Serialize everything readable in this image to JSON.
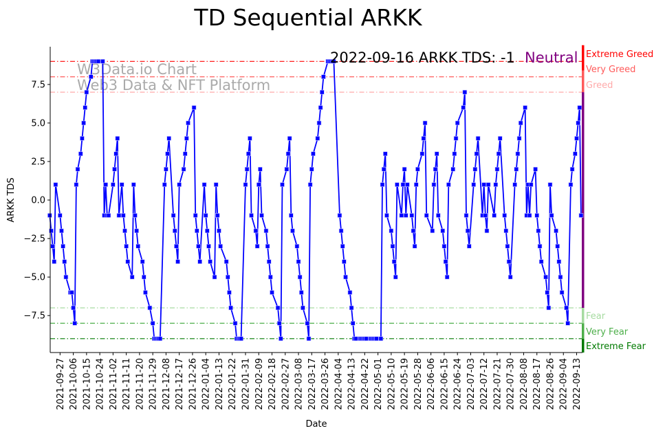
{
  "chart_data": {
    "type": "line",
    "title": "TD Sequential ARKK",
    "xlabel": "Date",
    "ylabel": "ARKK TDS",
    "x_unit": "days since 2021-09-27",
    "x_origin": "2021-09-27",
    "xlim": [
      -6.7,
      354.5
    ],
    "ylim": [
      -9.9,
      9.95
    ],
    "yticks": [
      7.5,
      5.0,
      2.5,
      0.0,
      -2.5,
      -5.0,
      -7.5
    ],
    "ytick_labels": [
      "7.5",
      "5.0",
      "2.5",
      "0.0",
      "−2.5",
      "−5.0",
      "−7.5"
    ],
    "xticks": [
      0,
      9,
      18,
      27,
      36,
      45,
      54,
      63,
      72,
      81,
      90,
      99,
      108,
      117,
      126,
      135,
      144,
      153,
      162,
      171,
      180,
      189,
      198,
      207,
      216,
      225,
      234,
      243,
      252,
      261,
      270,
      279,
      288,
      297,
      306,
      315,
      324,
      333,
      342,
      351
    ],
    "xtick_labels": [
      "2021-09-27",
      "2021-10-06",
      "2021-10-15",
      "2021-10-24",
      "2021-11-02",
      "2021-11-11",
      "2021-11-20",
      "2021-11-29",
      "2021-12-08",
      "2021-12-17",
      "2021-12-26",
      "2022-01-04",
      "2022-01-13",
      "2022-01-22",
      "2022-01-31",
      "2022-02-09",
      "2022-02-18",
      "2022-02-27",
      "2022-03-08",
      "2022-03-17",
      "2022-03-26",
      "2022-04-04",
      "2022-04-13",
      "2022-04-22",
      "2022-05-01",
      "2022-05-10",
      "2022-05-19",
      "2022-05-28",
      "2022-06-06",
      "2022-06-15",
      "2022-06-24",
      "2022-07-03",
      "2022-07-12",
      "2022-07-21",
      "2022-07-30",
      "2022-08-08",
      "2022-08-17",
      "2022-08-26",
      "2022-09-04",
      "2022-09-13"
    ],
    "series": [
      {
        "name": "ARKK TDS",
        "color": "#0000ff",
        "points": [
          [
            -7,
            -1
          ],
          [
            -6,
            -2
          ],
          [
            -5,
            -3
          ],
          [
            -4,
            -4
          ],
          [
            -3,
            1
          ],
          [
            0,
            -1
          ],
          [
            1,
            -2
          ],
          [
            2,
            -3
          ],
          [
            3,
            -4
          ],
          [
            4,
            -5
          ],
          [
            7,
            -6
          ],
          [
            8,
            -6
          ],
          [
            9,
            -7
          ],
          [
            10,
            -8
          ],
          [
            11,
            1
          ],
          [
            12,
            2
          ],
          [
            14,
            3
          ],
          [
            15,
            4
          ],
          [
            16,
            5
          ],
          [
            17,
            6
          ],
          [
            18,
            7
          ],
          [
            21,
            8
          ],
          [
            22,
            9
          ],
          [
            23,
            9
          ],
          [
            24,
            9
          ],
          [
            25,
            9
          ],
          [
            26,
            9
          ],
          [
            29,
            9
          ],
          [
            30,
            -1
          ],
          [
            31,
            1
          ],
          [
            32,
            -1
          ],
          [
            33,
            -1
          ],
          [
            36,
            1
          ],
          [
            37,
            2
          ],
          [
            38,
            3
          ],
          [
            39,
            4
          ],
          [
            40,
            -1
          ],
          [
            42,
            1
          ],
          [
            43,
            -1
          ],
          [
            44,
            -2
          ],
          [
            45,
            -3
          ],
          [
            46,
            -4
          ],
          [
            49,
            -5
          ],
          [
            50,
            1
          ],
          [
            51,
            -1
          ],
          [
            52,
            -2
          ],
          [
            53,
            -3
          ],
          [
            56,
            -4
          ],
          [
            57,
            -5
          ],
          [
            58,
            -6
          ],
          [
            61,
            -7
          ],
          [
            63,
            -8
          ],
          [
            64,
            -9
          ],
          [
            65,
            -9
          ],
          [
            66,
            -9
          ],
          [
            67,
            -9
          ],
          [
            68,
            -9
          ],
          [
            71,
            1
          ],
          [
            72,
            2
          ],
          [
            73,
            3
          ],
          [
            74,
            4
          ],
          [
            77,
            -1
          ],
          [
            78,
            -2
          ],
          [
            79,
            -3
          ],
          [
            80,
            -4
          ],
          [
            81,
            1
          ],
          [
            84,
            2
          ],
          [
            85,
            3
          ],
          [
            86,
            4
          ],
          [
            87,
            5
          ],
          [
            91,
            6
          ],
          [
            92,
            -1
          ],
          [
            93,
            -2
          ],
          [
            94,
            -3
          ],
          [
            95,
            -4
          ],
          [
            98,
            1
          ],
          [
            99,
            -1
          ],
          [
            100,
            -2
          ],
          [
            101,
            -3
          ],
          [
            102,
            -4
          ],
          [
            105,
            -5
          ],
          [
            106,
            1
          ],
          [
            107,
            -1
          ],
          [
            108,
            -2
          ],
          [
            109,
            -3
          ],
          [
            113,
            -4
          ],
          [
            114,
            -5
          ],
          [
            115,
            -6
          ],
          [
            116,
            -7
          ],
          [
            119,
            -8
          ],
          [
            120,
            -9
          ],
          [
            121,
            -9
          ],
          [
            122,
            -9
          ],
          [
            123,
            -9
          ],
          [
            126,
            1
          ],
          [
            127,
            2
          ],
          [
            128,
            3
          ],
          [
            129,
            4
          ],
          [
            130,
            -1
          ],
          [
            133,
            -2
          ],
          [
            134,
            -3
          ],
          [
            135,
            1
          ],
          [
            136,
            2
          ],
          [
            137,
            -1
          ],
          [
            140,
            -2
          ],
          [
            141,
            -3
          ],
          [
            142,
            -4
          ],
          [
            143,
            -5
          ],
          [
            144,
            -6
          ],
          [
            148,
            -7
          ],
          [
            149,
            -8
          ],
          [
            150,
            -9
          ],
          [
            151,
            1
          ],
          [
            154,
            2
          ],
          [
            155,
            3
          ],
          [
            156,
            4
          ],
          [
            157,
            -1
          ],
          [
            158,
            -2
          ],
          [
            161,
            -3
          ],
          [
            162,
            -4
          ],
          [
            163,
            -5
          ],
          [
            164,
            -6
          ],
          [
            165,
            -7
          ],
          [
            168,
            -8
          ],
          [
            169,
            -9
          ],
          [
            170,
            1
          ],
          [
            171,
            2
          ],
          [
            172,
            3
          ],
          [
            175,
            4
          ],
          [
            176,
            5
          ],
          [
            177,
            6
          ],
          [
            178,
            7
          ],
          [
            179,
            8
          ],
          [
            182,
            9
          ],
          [
            183,
            9
          ],
          [
            184,
            9
          ],
          [
            185,
            9
          ],
          [
            186,
            9
          ],
          [
            190,
            -1
          ],
          [
            191,
            -2
          ],
          [
            192,
            -3
          ],
          [
            193,
            -4
          ],
          [
            194,
            -5
          ],
          [
            197,
            -6
          ],
          [
            198,
            -7
          ],
          [
            199,
            -8
          ],
          [
            200,
            -9
          ],
          [
            201,
            -9
          ],
          [
            204,
            -9
          ],
          [
            205,
            -9
          ],
          [
            206,
            -9
          ],
          [
            207,
            -9
          ],
          [
            208,
            -9
          ],
          [
            211,
            -9
          ],
          [
            212,
            -9
          ],
          [
            213,
            -9
          ],
          [
            214,
            -9
          ],
          [
            215,
            -9
          ],
          [
            218,
            -9
          ],
          [
            219,
            1
          ],
          [
            220,
            2
          ],
          [
            221,
            3
          ],
          [
            222,
            -1
          ],
          [
            225,
            -2
          ],
          [
            226,
            -3
          ],
          [
            227,
            -4
          ],
          [
            228,
            -5
          ],
          [
            229,
            1
          ],
          [
            232,
            -1
          ],
          [
            233,
            1
          ],
          [
            234,
            2
          ],
          [
            235,
            -1
          ],
          [
            236,
            1
          ],
          [
            239,
            -1
          ],
          [
            240,
            -2
          ],
          [
            241,
            -3
          ],
          [
            242,
            1
          ],
          [
            243,
            2
          ],
          [
            246,
            3
          ],
          [
            247,
            4
          ],
          [
            248,
            5
          ],
          [
            249,
            -1
          ],
          [
            253,
            -2
          ],
          [
            254,
            1
          ],
          [
            255,
            2
          ],
          [
            256,
            3
          ],
          [
            257,
            -1
          ],
          [
            260,
            -2
          ],
          [
            261,
            -3
          ],
          [
            262,
            -4
          ],
          [
            263,
            -5
          ],
          [
            264,
            1
          ],
          [
            267,
            2
          ],
          [
            268,
            3
          ],
          [
            269,
            4
          ],
          [
            270,
            5
          ],
          [
            274,
            6
          ],
          [
            275,
            7
          ],
          [
            276,
            -1
          ],
          [
            277,
            -2
          ],
          [
            278,
            -3
          ],
          [
            281,
            1
          ],
          [
            282,
            2
          ],
          [
            283,
            3
          ],
          [
            284,
            4
          ],
          [
            287,
            -1
          ],
          [
            288,
            1
          ],
          [
            289,
            -1
          ],
          [
            290,
            -2
          ],
          [
            291,
            1
          ],
          [
            295,
            -1
          ],
          [
            296,
            1
          ],
          [
            297,
            2
          ],
          [
            298,
            3
          ],
          [
            299,
            4
          ],
          [
            302,
            -1
          ],
          [
            303,
            -2
          ],
          [
            304,
            -3
          ],
          [
            305,
            -4
          ],
          [
            306,
            -5
          ],
          [
            309,
            1
          ],
          [
            310,
            2
          ],
          [
            311,
            3
          ],
          [
            312,
            4
          ],
          [
            313,
            5
          ],
          [
            316,
            6
          ],
          [
            317,
            -1
          ],
          [
            318,
            1
          ],
          [
            319,
            -1
          ],
          [
            320,
            1
          ],
          [
            323,
            2
          ],
          [
            324,
            -1
          ],
          [
            325,
            -2
          ],
          [
            326,
            -3
          ],
          [
            327,
            -4
          ],
          [
            330,
            -5
          ],
          [
            331,
            -6
          ],
          [
            332,
            -7
          ],
          [
            333,
            1
          ],
          [
            334,
            -1
          ],
          [
            337,
            -2
          ],
          [
            338,
            -3
          ],
          [
            339,
            -4
          ],
          [
            340,
            -5
          ],
          [
            341,
            -6
          ],
          [
            344,
            -7
          ],
          [
            345,
            -8
          ],
          [
            347,
            1
          ],
          [
            348,
            2
          ],
          [
            350,
            3
          ],
          [
            351,
            4
          ],
          [
            352,
            5
          ],
          [
            353,
            6
          ],
          [
            354,
            -1
          ]
        ]
      }
    ],
    "thresholds": [
      {
        "value": 9,
        "label": "Extreme Greed",
        "color": "#ff0000"
      },
      {
        "value": 8,
        "label": "Very Greed",
        "color": "#ff5a5a"
      },
      {
        "value": 7,
        "label": "Greed",
        "color": "#ffaaaa"
      },
      {
        "value": -7,
        "label": "Fear",
        "color": "#a6dba0"
      },
      {
        "value": -8,
        "label": "Very Fear",
        "color": "#4daf4a"
      },
      {
        "value": -9,
        "label": "Extreme Fear",
        "color": "#007a00"
      }
    ],
    "neutral_color": "#800080",
    "annotation": {
      "text": "2022-09-16 ARKK TDS: -1",
      "status": "Neutral",
      "status_color": "#800080"
    },
    "watermark": [
      "W3Data.io Chart",
      "Web3 Data & NFT Platform"
    ],
    "grid": false
  }
}
